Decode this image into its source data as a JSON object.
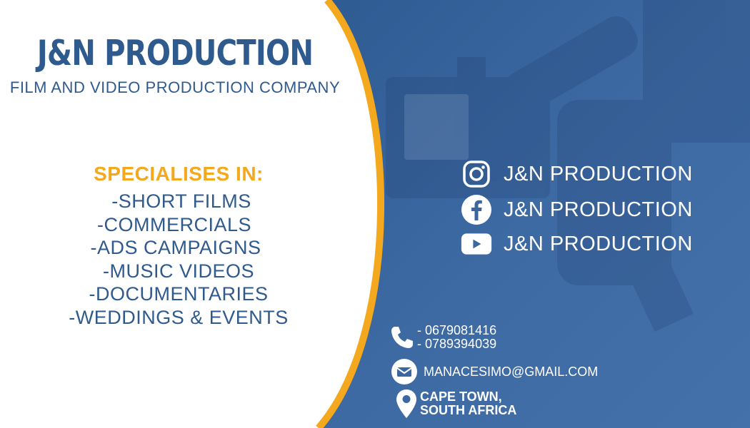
{
  "brand": {
    "title": "J&N PRODUCTION",
    "subtitle": "FILM AND VIDEO PRODUCTION COMPANY"
  },
  "specialises": {
    "heading": "SPECIALISES IN:",
    "items": [
      "-SHORT FILMS",
      "-COMMERCIALS",
      "-ADS CAMPAIGNS",
      "-MUSIC VIDEOS",
      "-DOCUMENTARIES",
      "-WEDDINGS & EVENTS"
    ]
  },
  "social": {
    "instagram": {
      "icon": "instagram-icon",
      "label": "J&N PRODUCTION"
    },
    "facebook": {
      "icon": "facebook-icon",
      "label": "J&N PRODUCTION"
    },
    "youtube": {
      "icon": "youtube-icon",
      "label": "J&N PRODUCTION"
    }
  },
  "contact": {
    "phone_icon": "phone-icon",
    "phone_1": "- 0679081416",
    "phone_2": "- 0789394039",
    "email_icon": "envelope-icon",
    "email": "MANACESIMO@GMAIL.COM",
    "location_icon": "location-pin-icon",
    "address_line_1": "CAPE TOWN,",
    "address_line_2": "SOUTH AFRICA"
  },
  "colors": {
    "brand_blue": "#2f5a8e",
    "panel_blue": "#3b66a0",
    "accent_orange": "#f3a81d",
    "white": "#ffffff"
  }
}
